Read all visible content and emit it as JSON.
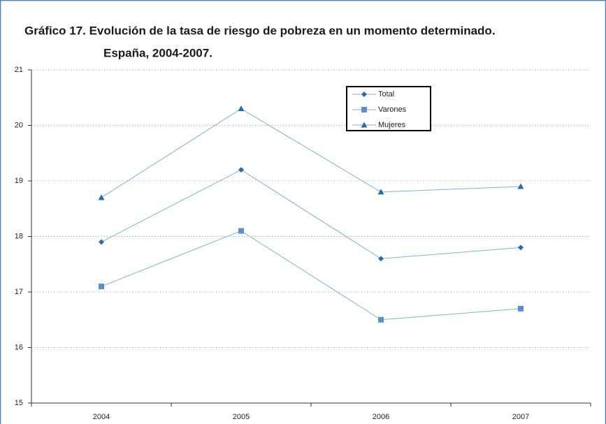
{
  "chart_data": {
    "type": "line",
    "title": [
      "Gráfico 17. Evolución de la tasa de riesgo de pobreza en un momento determinado.",
      "España, 2004-2007."
    ],
    "categories": [
      "2004",
      "2005",
      "2006",
      "2007"
    ],
    "series": [
      {
        "name": "Total",
        "color": "#2e6da4",
        "marker": "diamond",
        "values": [
          17.9,
          19.2,
          17.6,
          17.8
        ]
      },
      {
        "name": "Varones",
        "color": "#5b8fc9",
        "marker": "square",
        "values": [
          17.1,
          18.1,
          16.5,
          16.7
        ]
      },
      {
        "name": "Mujeres",
        "color": "#2b6aa8",
        "marker": "triangle",
        "values": [
          18.7,
          20.3,
          18.8,
          18.9
        ]
      }
    ],
    "line_color": "#7fb0dc",
    "ylim": [
      15,
      21
    ],
    "yticks": [
      15,
      16,
      17,
      18,
      19,
      20,
      21
    ],
    "grid": true,
    "legend": "top-right"
  }
}
